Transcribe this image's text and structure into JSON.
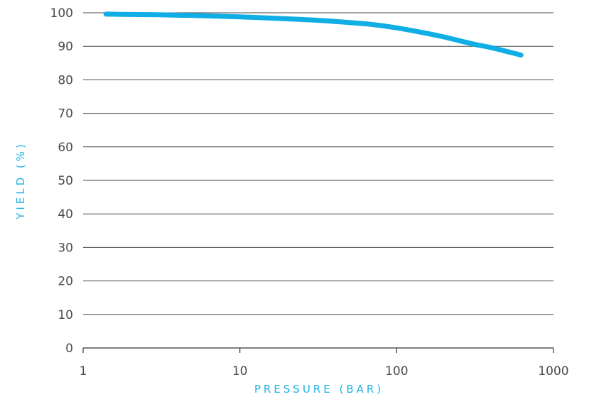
{
  "chart_data": {
    "type": "line",
    "title": "",
    "xlabel": "PRESSURE (BAR)",
    "ylabel": "YIELD (%)",
    "x_scale": "log",
    "xlim": [
      1,
      1000
    ],
    "ylim": [
      0,
      100
    ],
    "x_ticks": [
      1,
      10,
      100,
      1000
    ],
    "x_tick_labels": [
      "1",
      "10",
      "100",
      "1000"
    ],
    "y_ticks": [
      0,
      10,
      20,
      30,
      40,
      50,
      60,
      70,
      80,
      90,
      100
    ],
    "y_tick_labels": [
      "0",
      "10",
      "20",
      "30",
      "40",
      "50",
      "60",
      "70",
      "80",
      "90",
      "100"
    ],
    "grid": "horizontal",
    "colors": {
      "line": "#11aee6",
      "axis_title": "#21b4e6",
      "text": "#4a4a4a"
    },
    "series": [
      {
        "x": [
          1.4,
          2,
          3,
          5,
          10,
          20,
          30,
          50,
          70,
          100,
          150,
          200,
          300,
          400,
          500,
          620
        ],
        "y": [
          99.6,
          99.5,
          99.4,
          99.2,
          98.8,
          98.2,
          97.8,
          97.1,
          96.5,
          95.5,
          94.0,
          92.8,
          90.8,
          89.6,
          88.5,
          87.4
        ]
      }
    ]
  }
}
